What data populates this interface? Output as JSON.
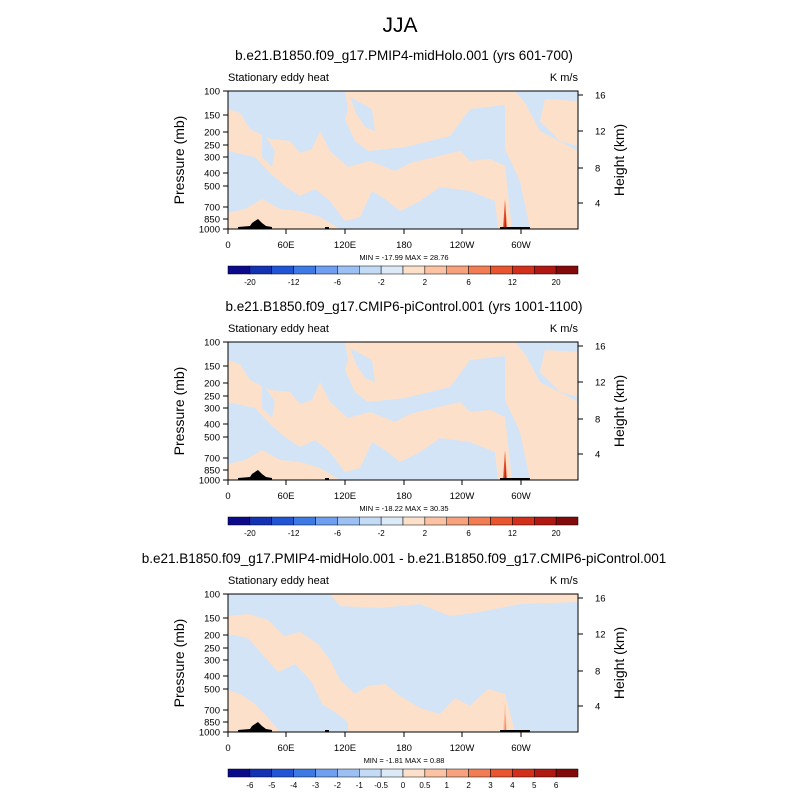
{
  "figure": {
    "title": "JJA"
  },
  "colors": {
    "positive_fill": "#fde0c9",
    "negative_fill": "#d4e4f7",
    "topography": "#000000"
  },
  "chart_data": [
    {
      "type": "heatmap",
      "title": "b.e21.B1850.f09_g17.PMIP4-midHolo.001 (yrs 601-700)",
      "left_label": "Stationary eddy heat",
      "units": "K m/s",
      "ylabel": "Pressure (mb)",
      "y2label": "Height (km)",
      "yticks": [
        "100",
        "150",
        "200",
        "250",
        "300",
        "400",
        "500",
        "700",
        "850",
        "1000"
      ],
      "y2ticks": [
        "16",
        "12",
        "8",
        "4"
      ],
      "xticks": [
        "0",
        "60E",
        "120E",
        "180",
        "120W",
        "60W"
      ],
      "stats": "MIN = -17.99  MAX =  28.76",
      "colorbar": [
        "-20",
        "-12",
        "-6",
        "-2",
        "2",
        "6",
        "12",
        "20"
      ],
      "colorbar_colors": [
        "#0a0a8a",
        "#1432b4",
        "#2255d6",
        "#3e7ae6",
        "#6e9ff0",
        "#9cc0f4",
        "#c4dbf6",
        "#dceaf8",
        "#fde0c9",
        "#fbc3a3",
        "#f7a27c",
        "#f27d55",
        "#e8552f",
        "#d3301c",
        "#b01812",
        "#820a0a"
      ]
    },
    {
      "type": "heatmap",
      "title": "b.e21.B1850.f09_g17.CMIP6-piControl.001 (yrs 1001-1100)",
      "left_label": "Stationary eddy heat",
      "units": "K m/s",
      "ylabel": "Pressure (mb)",
      "y2label": "Height (km)",
      "yticks": [
        "100",
        "150",
        "200",
        "250",
        "300",
        "400",
        "500",
        "700",
        "850",
        "1000"
      ],
      "y2ticks": [
        "16",
        "12",
        "8",
        "4"
      ],
      "xticks": [
        "0",
        "60E",
        "120E",
        "180",
        "120W",
        "60W"
      ],
      "stats": "MIN = -18.22  MAX =  30.35",
      "colorbar": [
        "-20",
        "-12",
        "-6",
        "-2",
        "2",
        "6",
        "12",
        "20"
      ],
      "colorbar_colors": [
        "#0a0a8a",
        "#1432b4",
        "#2255d6",
        "#3e7ae6",
        "#6e9ff0",
        "#9cc0f4",
        "#c4dbf6",
        "#dceaf8",
        "#fde0c9",
        "#fbc3a3",
        "#f7a27c",
        "#f27d55",
        "#e8552f",
        "#d3301c",
        "#b01812",
        "#820a0a"
      ]
    },
    {
      "type": "heatmap",
      "title": "b.e21.B1850.f09_g17.PMIP4-midHolo.001 - b.e21.B1850.f09_g17.CMIP6-piControl.001",
      "left_label": "Stationary eddy heat",
      "units": "K m/s",
      "ylabel": "Pressure (mb)",
      "y2label": "Height (km)",
      "yticks": [
        "100",
        "150",
        "200",
        "250",
        "300",
        "400",
        "500",
        "700",
        "850",
        "1000"
      ],
      "y2ticks": [
        "16",
        "12",
        "8",
        "4"
      ],
      "xticks": [
        "0",
        "60E",
        "120E",
        "180",
        "120W",
        "60W"
      ],
      "stats": "MIN = -1.81  MAX =  0.88",
      "colorbar": [
        "-6",
        "-5",
        "-4",
        "-3",
        "-2",
        "-1",
        "-0.5",
        "0",
        "0.5",
        "1",
        "2",
        "3",
        "4",
        "5",
        "6"
      ],
      "colorbar_colors": [
        "#0a0a8a",
        "#1432b4",
        "#2255d6",
        "#3e7ae6",
        "#6e9ff0",
        "#9cc0f4",
        "#c4dbf6",
        "#dceaf8",
        "#fde0c9",
        "#fbc3a3",
        "#f7a27c",
        "#f27d55",
        "#e8552f",
        "#d3301c",
        "#b01812",
        "#820a0a"
      ]
    }
  ]
}
